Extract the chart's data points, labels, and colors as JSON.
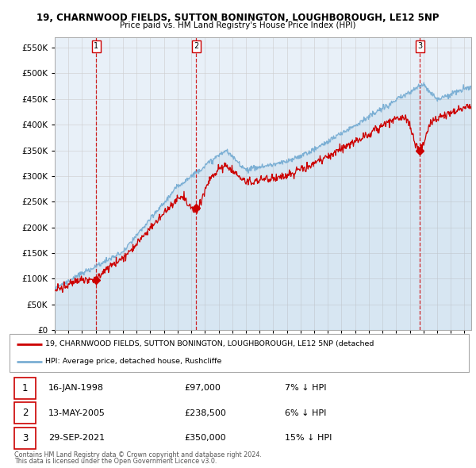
{
  "title": "19, CHARNWOOD FIELDS, SUTTON BONINGTON, LOUGHBOROUGH, LE12 5NP",
  "subtitle": "Price paid vs. HM Land Registry's House Price Index (HPI)",
  "ylim": [
    0,
    570000
  ],
  "yticks": [
    0,
    50000,
    100000,
    150000,
    200000,
    250000,
    300000,
    350000,
    400000,
    450000,
    500000,
    550000
  ],
  "sales": [
    {
      "date_num": 1998.04,
      "price": 97000,
      "label": "1"
    },
    {
      "date_num": 2005.36,
      "price": 238500,
      "label": "2"
    },
    {
      "date_num": 2021.74,
      "price": 350000,
      "label": "3"
    }
  ],
  "legend_red": "19, CHARNWOOD FIELDS, SUTTON BONINGTON, LOUGHBOROUGH, LE12 5NP (detached",
  "legend_blue": "HPI: Average price, detached house, Rushcliffe",
  "table_rows": [
    {
      "num": "1",
      "date": "16-JAN-1998",
      "price": "£97,000",
      "hpi": "7% ↓ HPI"
    },
    {
      "num": "2",
      "date": "13-MAY-2005",
      "price": "£238,500",
      "hpi": "6% ↓ HPI"
    },
    {
      "num": "3",
      "date": "29-SEP-2021",
      "price": "£350,000",
      "hpi": "15% ↓ HPI"
    }
  ],
  "footnote1": "Contains HM Land Registry data © Crown copyright and database right 2024.",
  "footnote2": "This data is licensed under the Open Government Licence v3.0.",
  "red_color": "#cc0000",
  "blue_color": "#7bafd4",
  "vline_color": "#cc0000",
  "grid_color": "#cccccc",
  "bg_color": "#e8f0f8",
  "plot_bg": "#ffffff",
  "box_color": "#dddddd",
  "xlim_start": 1995.0,
  "xlim_end": 2025.5
}
